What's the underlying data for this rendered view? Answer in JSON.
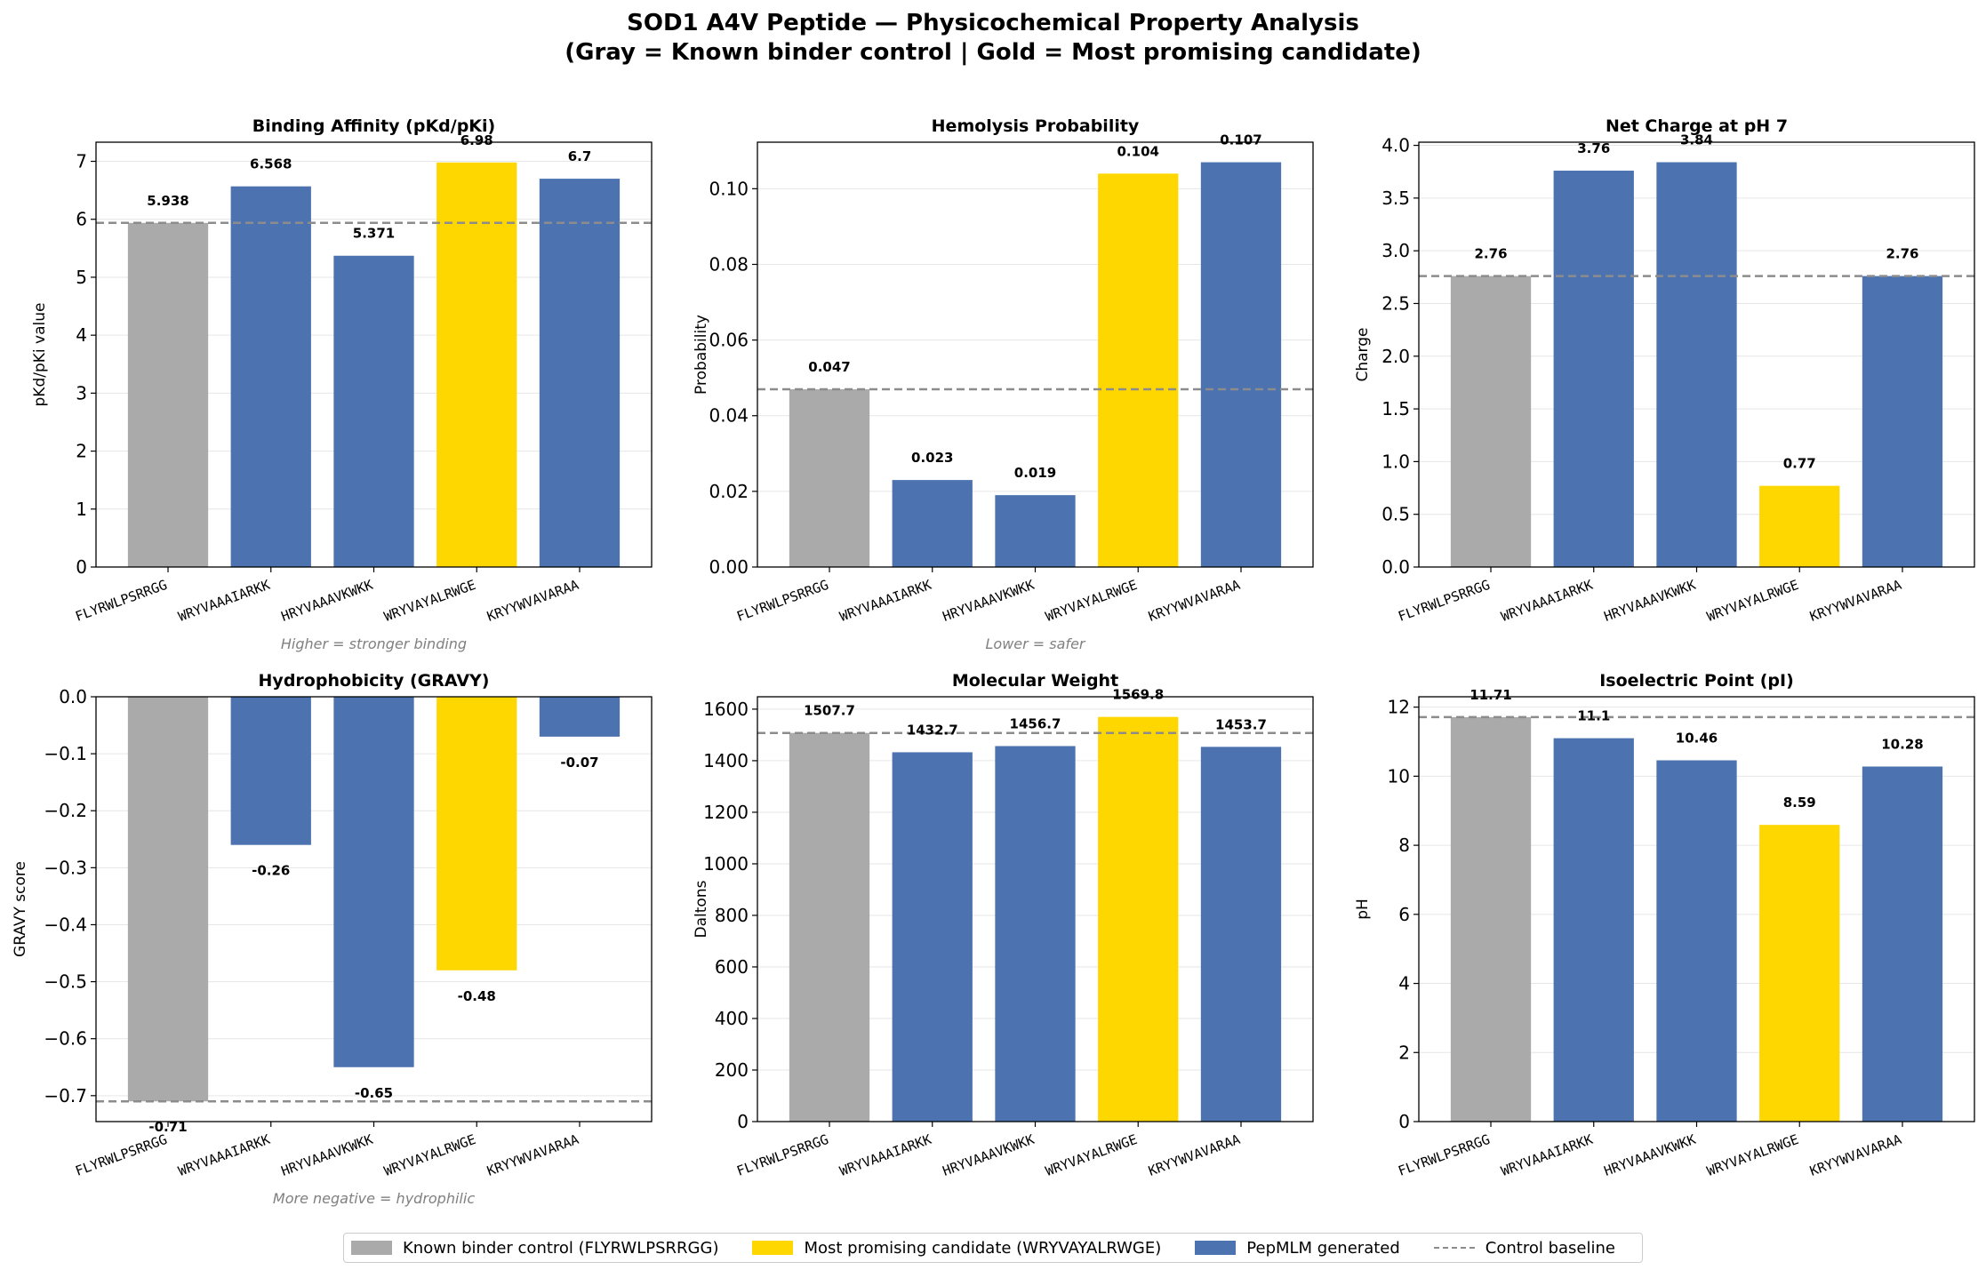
{
  "title_line1": "SOD1 A4V Peptide — Physicochemical Property Analysis",
  "title_line2": "(Gray = Known binder control  |  Gold = Most promising candidate)",
  "colors": {
    "control": "#aaaaaa",
    "candidate": "#ffd700",
    "generated": "#4c72b0",
    "baseline": "#8c8c8c"
  },
  "legend": [
    {
      "label": "Known binder control (FLYRWLPSRRGG)",
      "kind": "control"
    },
    {
      "label": "Most promising candidate (WRYVAYALRWGE)",
      "kind": "candidate"
    },
    {
      "label": "PepMLM generated",
      "kind": "generated"
    },
    {
      "label": "Control baseline",
      "kind": "baseline"
    }
  ],
  "chart_data": [
    {
      "type": "bar",
      "title": "Binding Affinity (pKd/pKi)",
      "ylabel": "pKd/pKi value",
      "note": "Higher = stronger binding",
      "categories": [
        "FLYRWLPSRRGG",
        "WRYVAAAIARKK",
        "HRYVAAAVKWKK",
        "WRYVAYALRWGE",
        "KRYYWVAVARAA"
      ],
      "values": [
        5.938,
        6.568,
        5.371,
        6.98,
        6.7
      ],
      "labels": [
        "5.938",
        "6.568",
        "5.371",
        "6.98",
        "6.7"
      ],
      "bar_roles": [
        "control",
        "generated",
        "generated",
        "candidate",
        "generated"
      ],
      "baseline": 5.938,
      "ylim": [
        0,
        7.33
      ],
      "yticks": [
        0,
        1,
        2,
        3,
        4,
        5,
        6,
        7
      ],
      "ytick_labels": [
        "0",
        "1",
        "2",
        "3",
        "4",
        "5",
        "6",
        "7"
      ],
      "grid": "y"
    },
    {
      "type": "bar",
      "title": "Hemolysis Probability",
      "ylabel": "Probability",
      "note": "Lower = safer",
      "categories": [
        "FLYRWLPSRRGG",
        "WRYVAAAIARKK",
        "HRYVAAAVKWKK",
        "WRYVAYALRWGE",
        "KRYYWVAVARAA"
      ],
      "values": [
        0.047,
        0.023,
        0.019,
        0.104,
        0.107
      ],
      "labels": [
        "0.047",
        "0.023",
        "0.019",
        "0.104",
        "0.107"
      ],
      "bar_roles": [
        "control",
        "generated",
        "generated",
        "candidate",
        "generated"
      ],
      "baseline": 0.047,
      "ylim": [
        0,
        0.1123
      ],
      "yticks": [
        0,
        0.02,
        0.04,
        0.06,
        0.08,
        0.1
      ],
      "ytick_labels": [
        "0.00",
        "0.02",
        "0.04",
        "0.06",
        "0.08",
        "0.10"
      ],
      "grid": "y"
    },
    {
      "type": "bar",
      "title": "Net Charge at pH 7",
      "ylabel": "Charge",
      "note": "",
      "categories": [
        "FLYRWLPSRRGG",
        "WRYVAAAIARKK",
        "HRYVAAAVKWKK",
        "WRYVAYALRWGE",
        "KRYYWVAVARAA"
      ],
      "values": [
        2.76,
        3.76,
        3.84,
        0.77,
        2.76
      ],
      "labels": [
        "2.76",
        "3.76",
        "3.84",
        "0.77",
        "2.76"
      ],
      "bar_roles": [
        "control",
        "generated",
        "generated",
        "candidate",
        "generated"
      ],
      "baseline": 2.76,
      "ylim": [
        0,
        4.03
      ],
      "yticks": [
        0,
        0.5,
        1,
        1.5,
        2,
        2.5,
        3,
        3.5,
        4
      ],
      "ytick_labels": [
        "0.0",
        "0.5",
        "1.0",
        "1.5",
        "2.0",
        "2.5",
        "3.0",
        "3.5",
        "4.0"
      ],
      "grid": "y"
    },
    {
      "type": "bar",
      "title": "Hydrophobicity (GRAVY)",
      "ylabel": "GRAVY score",
      "note": "More negative = hydrophilic",
      "categories": [
        "FLYRWLPSRRGG",
        "WRYVAAAIARKK",
        "HRYVAAAVKWKK",
        "WRYVAYALRWGE",
        "KRYYWVAVARAA"
      ],
      "values": [
        -0.71,
        -0.26,
        -0.65,
        -0.48,
        -0.07
      ],
      "labels": [
        "-0.71",
        "-0.26",
        "-0.65",
        "-0.48",
        "-0.07"
      ],
      "bar_roles": [
        "control",
        "generated",
        "generated",
        "candidate",
        "generated"
      ],
      "baseline": -0.71,
      "ylim": [
        -0.7455,
        0
      ],
      "yticks": [
        0,
        -0.1,
        -0.2,
        -0.3,
        -0.4,
        -0.5,
        -0.6,
        -0.7
      ],
      "ytick_labels": [
        "0.0",
        "−0.1",
        "−0.2",
        "−0.3",
        "−0.4",
        "−0.5",
        "−0.6",
        "−0.7"
      ],
      "grid": "y"
    },
    {
      "type": "bar",
      "title": "Molecular Weight",
      "ylabel": "Daltons",
      "note": "",
      "categories": [
        "FLYRWLPSRRGG",
        "WRYVAAAIARKK",
        "HRYVAAAVKWKK",
        "WRYVAYALRWGE",
        "KRYYWVAVARAA"
      ],
      "values": [
        1507.7,
        1432.7,
        1456.7,
        1569.8,
        1453.7
      ],
      "labels": [
        "1507.7",
        "1432.7",
        "1456.7",
        "1569.8",
        "1453.7"
      ],
      "bar_roles": [
        "control",
        "generated",
        "generated",
        "candidate",
        "generated"
      ],
      "baseline": 1507.7,
      "ylim": [
        0,
        1648
      ],
      "yticks": [
        0,
        200,
        400,
        600,
        800,
        1000,
        1200,
        1400,
        1600
      ],
      "ytick_labels": [
        "0",
        "200",
        "400",
        "600",
        "800",
        "1000",
        "1200",
        "1400",
        "1600"
      ],
      "grid": "y"
    },
    {
      "type": "bar",
      "title": "Isoelectric Point (pI)",
      "ylabel": "pH",
      "note": "",
      "categories": [
        "FLYRWLPSRRGG",
        "WRYVAAAIARKK",
        "HRYVAAAVKWKK",
        "WRYVAYALRWGE",
        "KRYYWVAVARAA"
      ],
      "values": [
        11.71,
        11.1,
        10.46,
        8.59,
        10.28
      ],
      "labels": [
        "11.71",
        "11.1",
        "10.46",
        "8.59",
        "10.28"
      ],
      "bar_roles": [
        "control",
        "generated",
        "generated",
        "candidate",
        "generated"
      ],
      "baseline": 11.71,
      "ylim": [
        0,
        12.3
      ],
      "yticks": [
        0,
        2,
        4,
        6,
        8,
        10,
        12
      ],
      "ytick_labels": [
        "0",
        "2",
        "4",
        "6",
        "8",
        "10",
        "12"
      ],
      "grid": "y"
    }
  ]
}
